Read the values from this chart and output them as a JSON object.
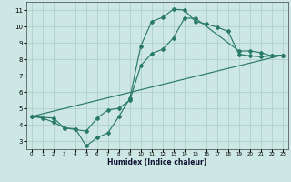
{
  "xlabel": "Humidex (Indice chaleur)",
  "xlim": [
    -0.5,
    23.5
  ],
  "ylim": [
    2.5,
    11.5
  ],
  "xticks": [
    0,
    1,
    2,
    3,
    4,
    5,
    6,
    7,
    8,
    9,
    10,
    11,
    12,
    13,
    14,
    15,
    16,
    17,
    18,
    19,
    20,
    21,
    22,
    23
  ],
  "yticks": [
    3,
    4,
    5,
    6,
    7,
    8,
    9,
    10,
    11
  ],
  "background_color": "#cde8e4",
  "grid_color": "#b0d0cc",
  "line_color": "#2a7a6a",
  "line1_x": [
    0,
    1,
    2,
    3,
    4,
    5,
    6,
    7,
    8,
    9,
    10,
    11,
    12,
    13,
    14,
    15,
    16,
    17,
    18,
    19,
    20,
    21,
    22,
    23
  ],
  "line1_y": [
    4.5,
    4.4,
    4.15,
    3.8,
    3.75,
    2.7,
    3.2,
    3.5,
    4.5,
    5.6,
    8.8,
    10.3,
    10.55,
    11.05,
    11.0,
    10.3,
    10.15,
    9.95,
    9.7,
    8.3,
    8.2,
    8.15,
    8.2,
    8.25
  ],
  "line2_x": [
    0,
    2,
    3,
    4,
    5,
    6,
    7,
    8,
    9,
    10,
    11,
    12,
    13,
    14,
    15,
    19,
    20,
    21,
    22,
    23
  ],
  "line2_y": [
    4.5,
    4.4,
    3.8,
    3.7,
    3.6,
    4.4,
    4.9,
    5.0,
    5.5,
    7.6,
    8.35,
    8.6,
    9.3,
    10.5,
    10.5,
    8.5,
    8.5,
    8.4,
    8.2,
    8.25
  ],
  "line3_x": [
    0,
    23
  ],
  "line3_y": [
    4.5,
    8.25
  ],
  "figsize": [
    3.2,
    2.0
  ],
  "dpi": 100
}
